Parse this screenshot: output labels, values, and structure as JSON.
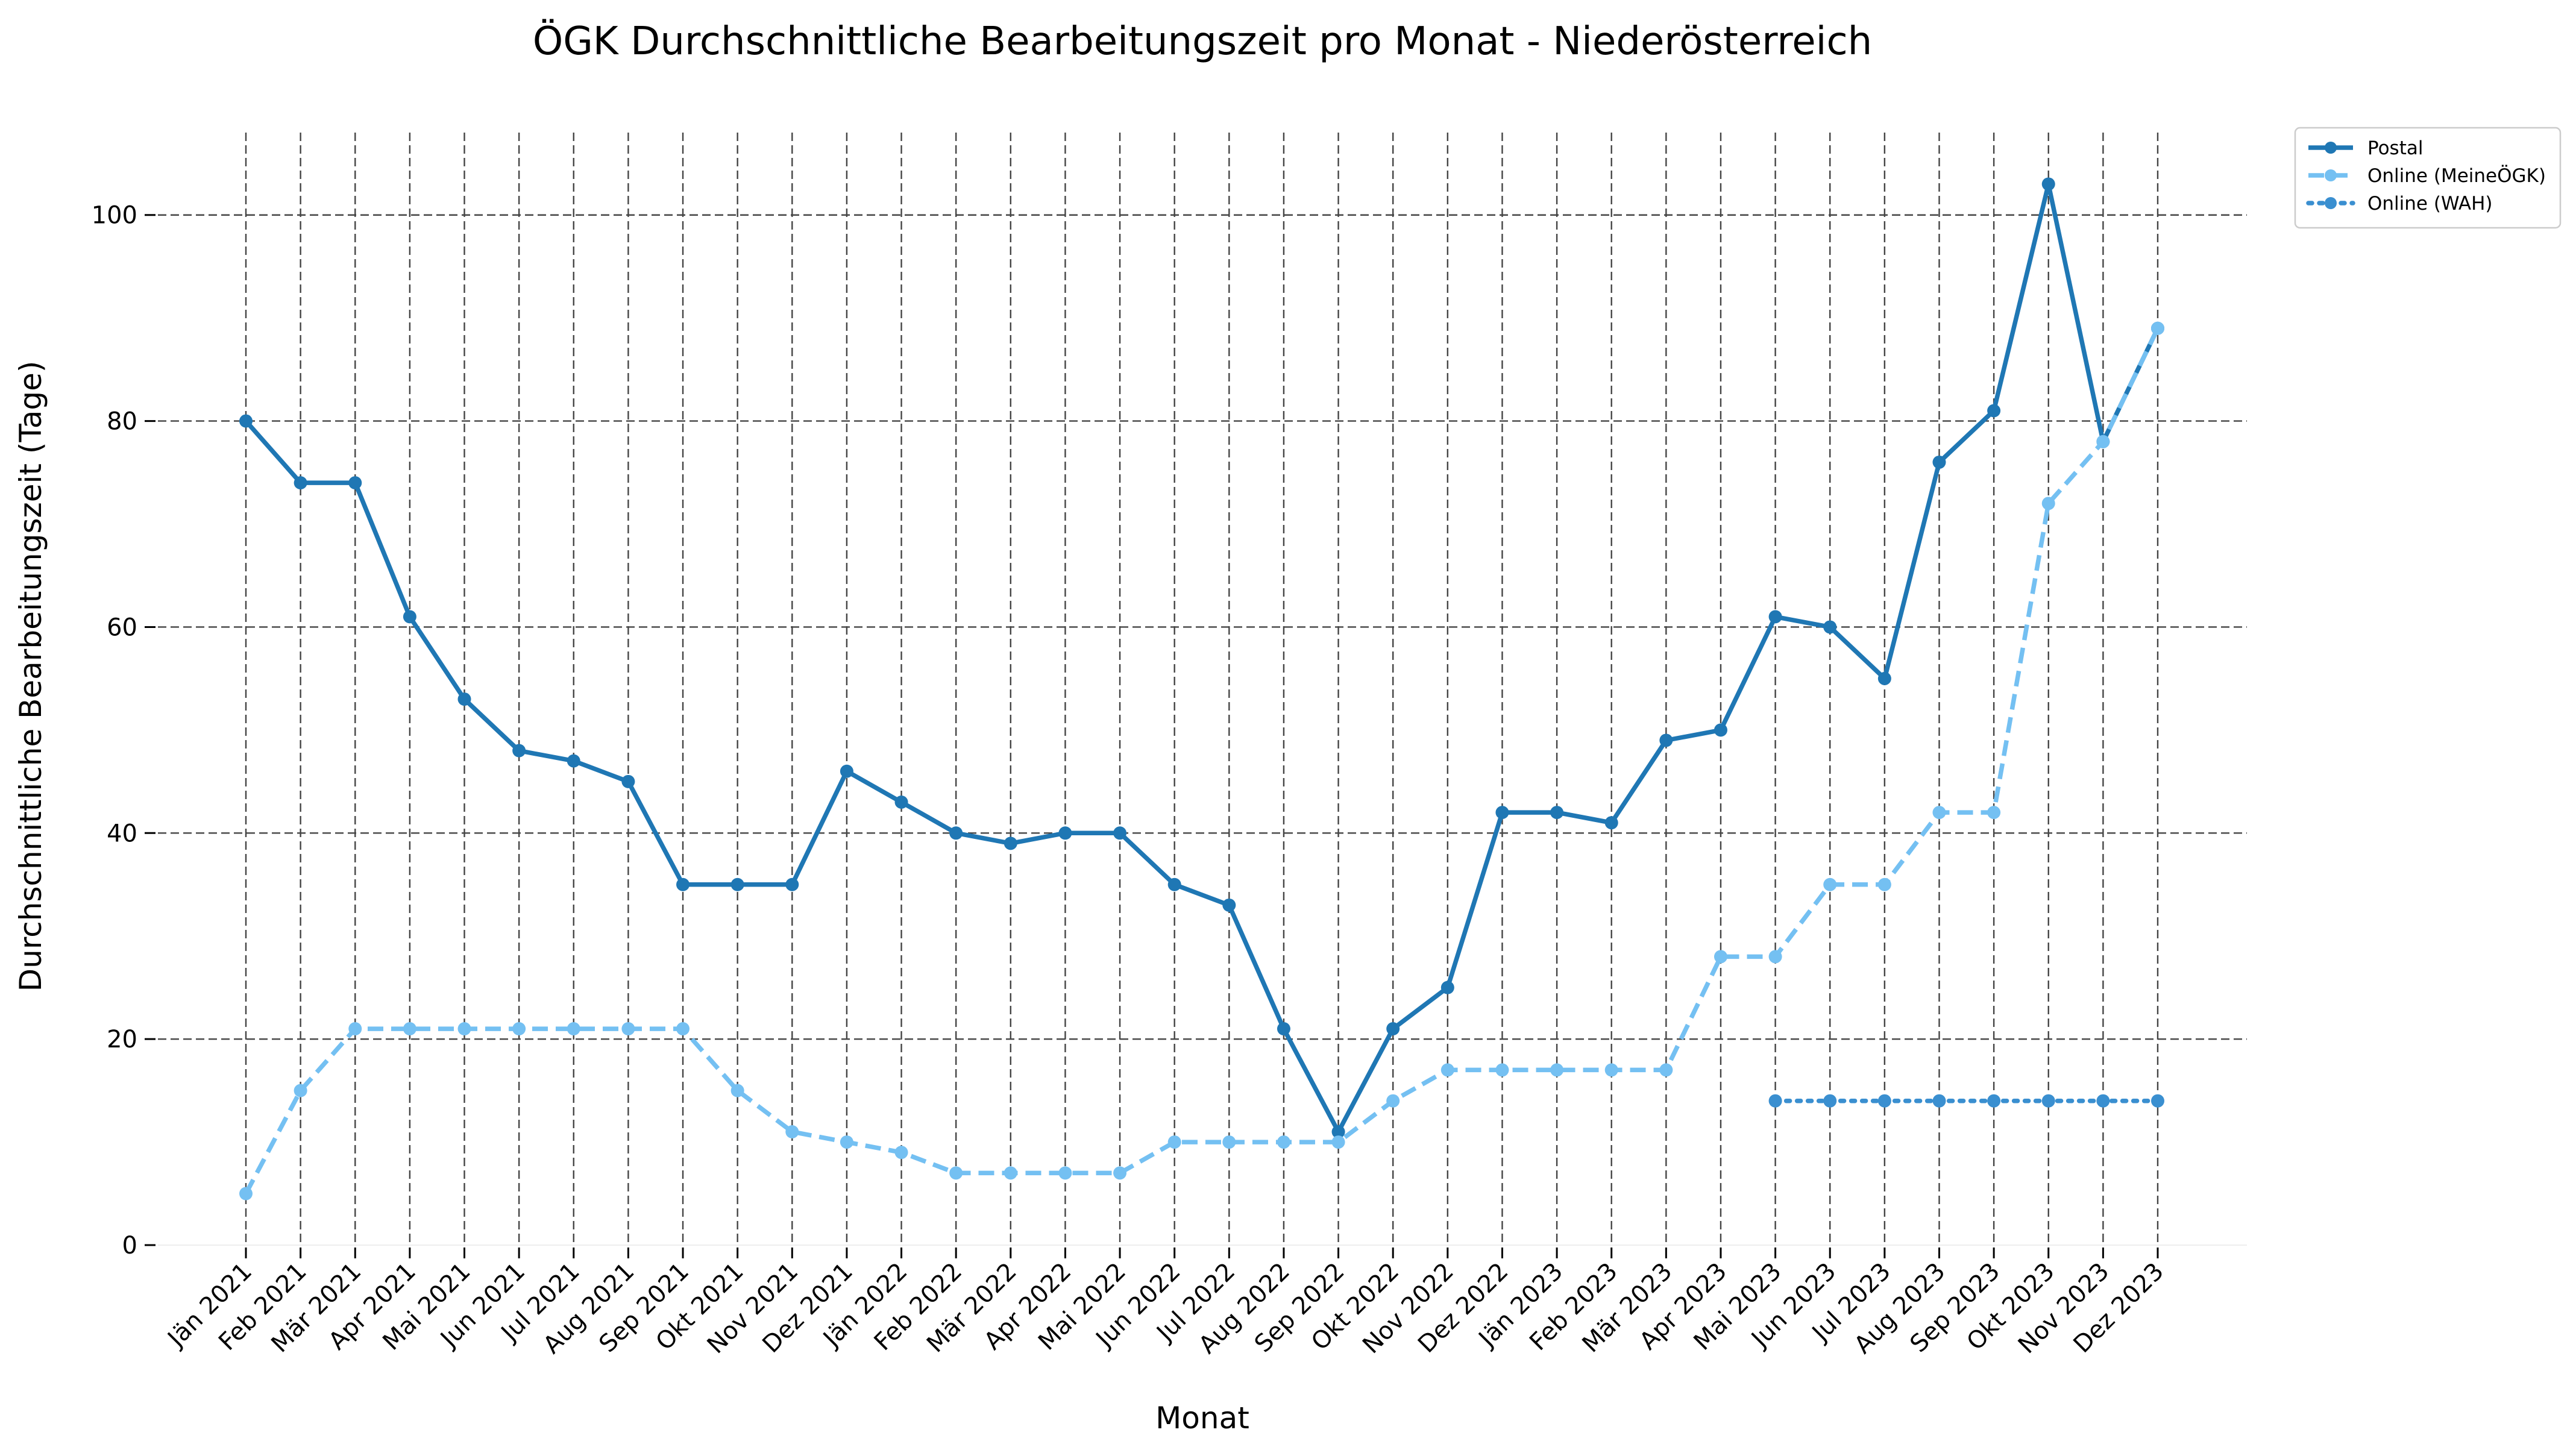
{
  "chart_data": {
    "type": "line",
    "title": "ÖGK Durchschnittliche Bearbeitungszeit pro Monat - Niederösterreich",
    "xlabel": "Monat",
    "ylabel": "Durchschnittliche Bearbeitungszeit (Tage)",
    "ylim": [
      0,
      108
    ],
    "yticks": [
      0,
      20,
      40,
      60,
      80,
      100
    ],
    "grid": true,
    "legend_position": "outside-top-right",
    "categories": [
      "Jän 2021",
      "Feb 2021",
      "Mär 2021",
      "Apr 2021",
      "Mai 2021",
      "Jun 2021",
      "Jul 2021",
      "Aug 2021",
      "Sep 2021",
      "Okt 2021",
      "Nov 2021",
      "Dez 2021",
      "Jän 2022",
      "Feb 2022",
      "Mär 2022",
      "Apr 2022",
      "Mai 2022",
      "Jun 2022",
      "Jul 2022",
      "Aug 2022",
      "Sep 2022",
      "Okt 2022",
      "Nov 2022",
      "Dez 2022",
      "Jän 2023",
      "Feb 2023",
      "Mär 2023",
      "Apr 2023",
      "Mai 2023",
      "Jun 2023",
      "Jul 2023",
      "Aug 2023",
      "Sep 2023",
      "Okt 2023",
      "Nov 2023",
      "Dez 2023"
    ],
    "series": [
      {
        "name": "Postal",
        "color": "#1f77b4",
        "style": "solid",
        "values": [
          80,
          74,
          74,
          61,
          53,
          48,
          47,
          45,
          35,
          35,
          35,
          46,
          43,
          40,
          39,
          40,
          40,
          35,
          33,
          21,
          11,
          21,
          25,
          42,
          42,
          41,
          49,
          50,
          61,
          60,
          55,
          76,
          81,
          103,
          78,
          89
        ]
      },
      {
        "name": "Online (MeineÖGK)",
        "color": "#74c0f2",
        "style": "dashed",
        "values": [
          5,
          15,
          21,
          21,
          21,
          21,
          21,
          21,
          21,
          15,
          11,
          10,
          9,
          7,
          7,
          7,
          7,
          10,
          10,
          10,
          10,
          14,
          17,
          17,
          17,
          17,
          17,
          28,
          28,
          35,
          35,
          42,
          42,
          72,
          78,
          89
        ]
      },
      {
        "name": "Online (WAH)",
        "color": "#3a8fd0",
        "style": "dotted",
        "values": [
          null,
          null,
          null,
          null,
          null,
          null,
          null,
          null,
          null,
          null,
          null,
          null,
          null,
          null,
          null,
          null,
          null,
          null,
          null,
          null,
          null,
          null,
          null,
          null,
          null,
          null,
          null,
          null,
          14,
          14,
          14,
          14,
          14,
          14,
          14,
          14
        ]
      }
    ]
  }
}
